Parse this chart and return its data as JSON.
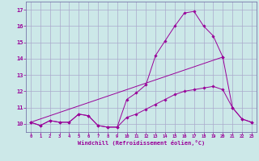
{
  "xlabel": "Windchill (Refroidissement éolien,°C)",
  "background_color": "#cce8e8",
  "line_color": "#990099",
  "grid_color": "#aaaacc",
  "spine_color": "#7777aa",
  "xlim": [
    -0.5,
    23.5
  ],
  "ylim": [
    9.5,
    17.5
  ],
  "yticks": [
    10,
    11,
    12,
    13,
    14,
    15,
    16,
    17
  ],
  "xticks": [
    0,
    1,
    2,
    3,
    4,
    5,
    6,
    7,
    8,
    9,
    10,
    11,
    12,
    13,
    14,
    15,
    16,
    17,
    18,
    19,
    20,
    21,
    22,
    23
  ],
  "series": [
    {
      "x": [
        0,
        1,
        2,
        3,
        4,
        5,
        6,
        7,
        8,
        9,
        10,
        11,
        12,
        13,
        14,
        15,
        16,
        17,
        18,
        19,
        20,
        21,
        22,
        23
      ],
      "y": [
        10.1,
        9.9,
        10.2,
        10.1,
        10.1,
        10.6,
        10.5,
        9.9,
        9.8,
        9.8,
        11.5,
        11.9,
        12.4,
        14.2,
        15.1,
        16.0,
        16.8,
        16.9,
        16.0,
        15.4,
        14.1,
        11.0,
        10.3,
        10.1
      ]
    },
    {
      "x": [
        0,
        1,
        2,
        3,
        4,
        5,
        6,
        7,
        8,
        9,
        10,
        11,
        12,
        13,
        14,
        15,
        16,
        17,
        18,
        19,
        20,
        21,
        22,
        23
      ],
      "y": [
        10.1,
        9.9,
        10.2,
        10.1,
        10.1,
        10.6,
        10.5,
        9.9,
        9.8,
        9.8,
        10.4,
        10.6,
        10.9,
        11.2,
        11.5,
        11.8,
        12.0,
        12.1,
        12.2,
        12.3,
        12.1,
        11.0,
        10.3,
        10.1
      ]
    },
    {
      "x": [
        0,
        20
      ],
      "y": [
        10.1,
        14.1
      ]
    }
  ]
}
